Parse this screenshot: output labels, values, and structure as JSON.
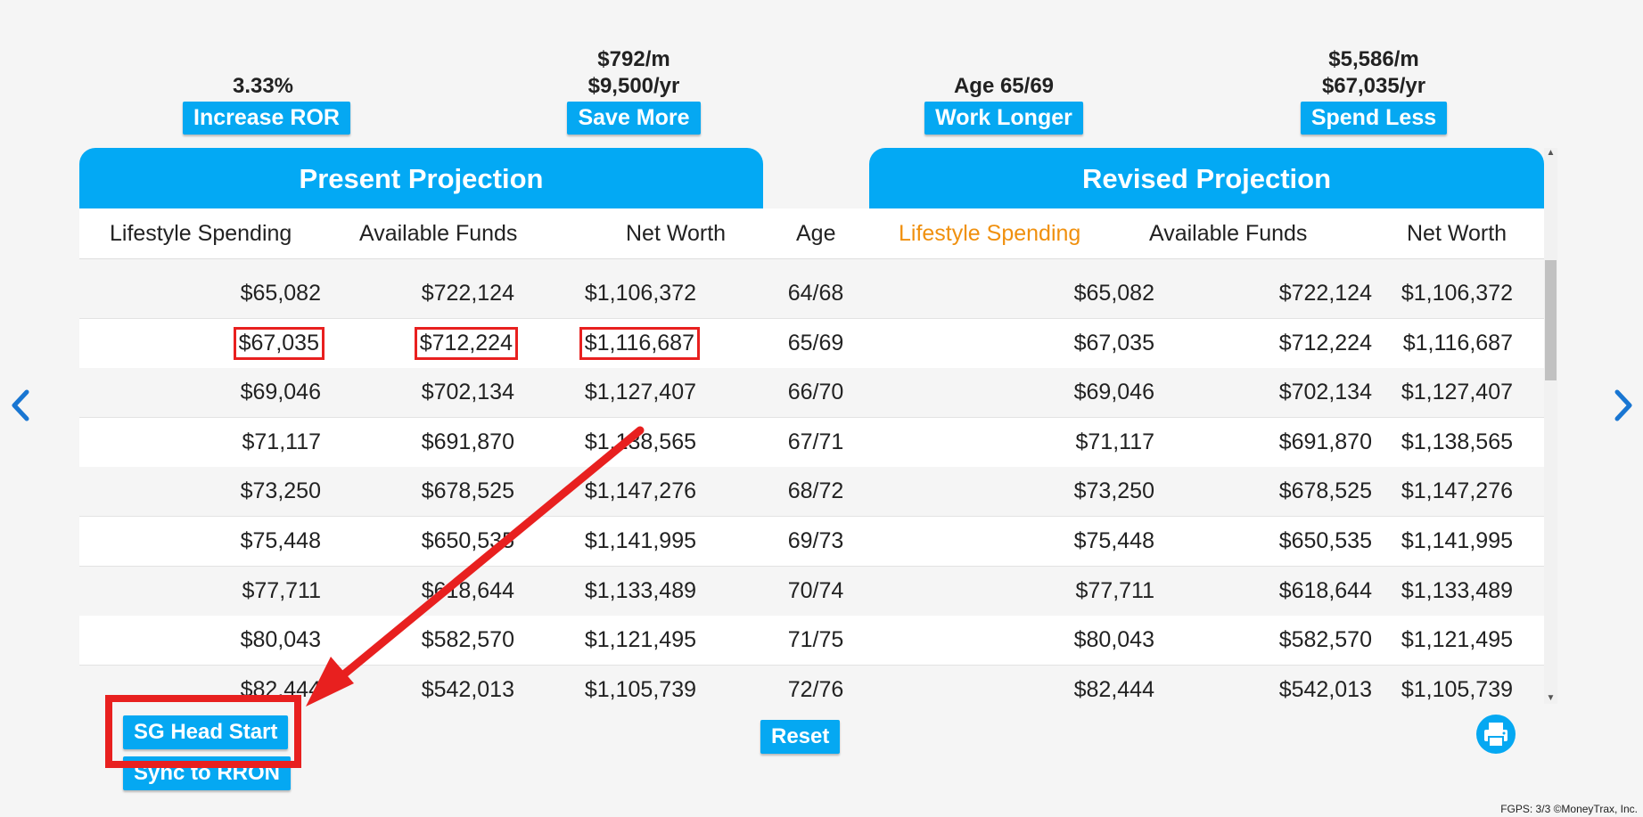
{
  "top_controls": [
    {
      "values": [
        "3.33%"
      ],
      "button": "Increase ROR"
    },
    {
      "values": [
        "$792/m",
        "$9,500/yr"
      ],
      "button": "Save More"
    },
    {
      "values": [
        "Age 65/69"
      ],
      "button": "Work Longer"
    },
    {
      "values": [
        "$5,586/m",
        "$67,035/yr"
      ],
      "button": "Spend Less"
    }
  ],
  "present_title": "Present Projection",
  "revised_title": "Revised Projection",
  "columns": {
    "p_spend": "Lifestyle Spending",
    "p_funds": "Available Funds",
    "p_worth": "Net Worth",
    "age": "Age",
    "r_spend": "Lifestyle Spending",
    "r_funds": "Available Funds",
    "r_worth": "Net Worth"
  },
  "colors": {
    "accent": "#03a9f4",
    "highlight_header": "#f0900e",
    "annotation": "#e8201f"
  },
  "rows": [
    {
      "p_spend": "$65,082",
      "p_funds": "$722,124",
      "p_worth": "$1,106,372",
      "age": "64/68",
      "r_spend": "$65,082",
      "r_funds": "$722,124",
      "r_worth": "$1,106,372"
    },
    {
      "p_spend": "$67,035",
      "p_funds": "$712,224",
      "p_worth": "$1,116,687",
      "age": "65/69",
      "r_spend": "$67,035",
      "r_funds": "$712,224",
      "r_worth": "$1,116,687"
    },
    {
      "p_spend": "$69,046",
      "p_funds": "$702,134",
      "p_worth": "$1,127,407",
      "age": "66/70",
      "r_spend": "$69,046",
      "r_funds": "$702,134",
      "r_worth": "$1,127,407"
    },
    {
      "p_spend": "$71,117",
      "p_funds": "$691,870",
      "p_worth": "$1,138,565",
      "age": "67/71",
      "r_spend": "$71,117",
      "r_funds": "$691,870",
      "r_worth": "$1,138,565"
    },
    {
      "p_spend": "$73,250",
      "p_funds": "$678,525",
      "p_worth": "$1,147,276",
      "age": "68/72",
      "r_spend": "$73,250",
      "r_funds": "$678,525",
      "r_worth": "$1,147,276"
    },
    {
      "p_spend": "$75,448",
      "p_funds": "$650,535",
      "p_worth": "$1,141,995",
      "age": "69/73",
      "r_spend": "$75,448",
      "r_funds": "$650,535",
      "r_worth": "$1,141,995"
    },
    {
      "p_spend": "$77,711",
      "p_funds": "$618,644",
      "p_worth": "$1,133,489",
      "age": "70/74",
      "r_spend": "$77,711",
      "r_funds": "$618,644",
      "r_worth": "$1,133,489"
    },
    {
      "p_spend": "$80,043",
      "p_funds": "$582,570",
      "p_worth": "$1,121,495",
      "age": "71/75",
      "r_spend": "$80,043",
      "r_funds": "$582,570",
      "r_worth": "$1,121,495"
    },
    {
      "p_spend": "$82,444",
      "p_funds": "$542,013",
      "p_worth": "$1,105,739",
      "age": "72/76",
      "r_spend": "$82,444",
      "r_funds": "$542,013",
      "r_worth": "$1,105,739"
    }
  ],
  "highlighted_row": 1,
  "buttons": {
    "head_start": "SG Head Start",
    "sync": "Sync to RRON",
    "reset": "Reset"
  },
  "icons": {
    "prev": "chevron-left-icon",
    "next": "chevron-right-icon",
    "print": "printer-icon"
  },
  "footer": "FGPS: 3/3 ©MoneyTrax, Inc."
}
